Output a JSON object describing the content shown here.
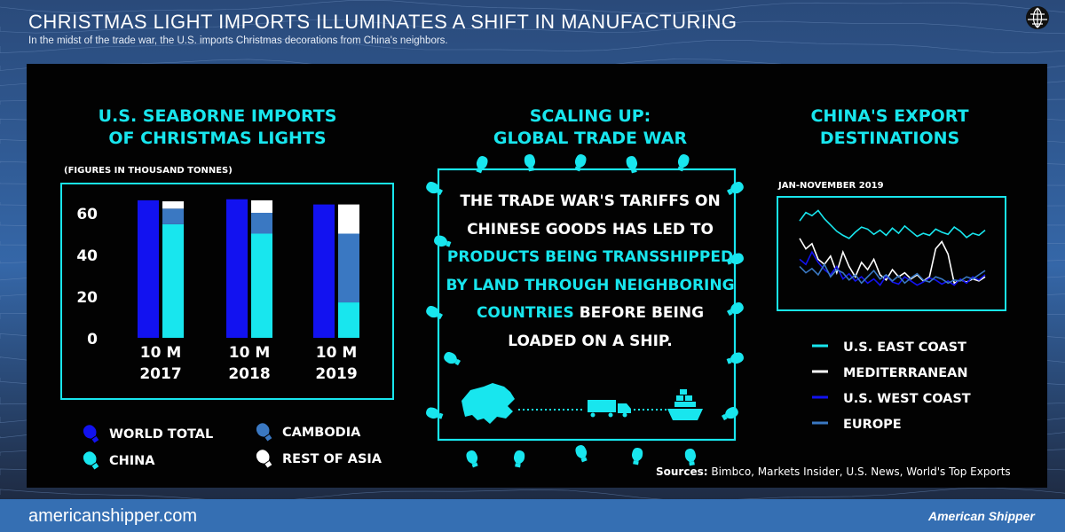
{
  "header": {
    "title": "CHRISTMAS LIGHT IMPORTS ILLUMINATES A SHIFT IN MANUFACTURING",
    "subtitle": "In the midst of the trade war, the U.S. imports Christmas decorations from China's neighbors."
  },
  "left": {
    "heading_line1": "U.S. SEABORNE IMPORTS",
    "heading_line2": "OF CHRISTMAS LIGHTS",
    "units": "(FIGURES IN THOUSAND TONNES)"
  },
  "middle": {
    "heading_line1": "SCALING UP:",
    "heading_line2": "GLOBAL TRADE WAR",
    "body_parts": [
      "THE TRADE WAR'S TARIFFS ON CHINESE GOODS HAS LED TO ",
      "PRODUCTS BEING TRANSSHIPPED BY LAND THROUGH NEIGHBORING COUNTRIES",
      " BEFORE BEING LOADED ON A SHIP."
    ]
  },
  "right": {
    "heading_line1": "CHINA'S EXPORT",
    "heading_line2": "DESTINATIONS",
    "period": "JAN-NOVEMBER 2019"
  },
  "colors": {
    "world_total": "#1212f0",
    "china": "#18e6ee",
    "cambodia": "#3a78c2",
    "rest_of_asia": "#ffffff",
    "frame": "#18e6ee"
  },
  "chart_data": [
    {
      "type": "bar",
      "title": "U.S. SEABORNE IMPORTS OF CHRISTMAS LIGHTS",
      "subtitle": "(FIGURES IN THOUSAND TONNES)",
      "categories": [
        [
          "10 M",
          "2017"
        ],
        [
          "10 M",
          "2018"
        ],
        [
          "10 M",
          "2019"
        ]
      ],
      "yticks": [
        0,
        20,
        40,
        60
      ],
      "ylim": [
        0,
        70
      ],
      "series": [
        {
          "name": "WORLD TOTAL",
          "stack": "total",
          "values": [
            66,
            66.5,
            64
          ]
        },
        {
          "name": "CHINA",
          "stack": "origin",
          "values": [
            54.5,
            50,
            17
          ]
        },
        {
          "name": "CAMBODIA",
          "stack": "origin",
          "values": [
            7.5,
            10,
            33
          ]
        },
        {
          "name": "REST OF ASIA",
          "stack": "origin",
          "values": [
            3.5,
            6,
            14
          ]
        }
      ],
      "legend_items": [
        {
          "name": "WORLD TOTAL",
          "color": "#1212f0"
        },
        {
          "name": "CAMBODIA",
          "color": "#3a78c2"
        },
        {
          "name": "CHINA",
          "color": "#18e6ee"
        },
        {
          "name": "REST OF ASIA",
          "color": "#ffffff"
        }
      ]
    },
    {
      "type": "line",
      "title": "CHINA'S EXPORT DESTINATIONS",
      "subtitle": "JAN-NOVEMBER 2019",
      "ylim": [
        0,
        10
      ],
      "series": [
        {
          "name": "U.S. EAST COAST",
          "color": "#18e6ee",
          "values": [
            8.2,
            9.0,
            8.7,
            9.2,
            8.4,
            7.8,
            7.2,
            6.8,
            6.5,
            7.1,
            7.6,
            7.4,
            6.9,
            7.3,
            6.8,
            7.5,
            7.0,
            7.7,
            7.2,
            6.7,
            7.0,
            6.8,
            7.4,
            7.1,
            6.9,
            7.6,
            7.2,
            6.6,
            7.0,
            6.8,
            7.3
          ]
        },
        {
          "name": "MEDITERRANEAN",
          "color": "#ffffff",
          "values": [
            6.5,
            5.5,
            6.0,
            4.5,
            4.0,
            4.8,
            3.2,
            5.2,
            3.8,
            2.8,
            4.2,
            3.5,
            4.5,
            3.0,
            2.5,
            3.5,
            2.8,
            3.2,
            2.6,
            3.0,
            2.4,
            2.8,
            5.5,
            6.2,
            5.0,
            2.2,
            2.5,
            2.3,
            2.6,
            2.4,
            2.8
          ]
        },
        {
          "name": "U.S. WEST COAST",
          "color": "#1212f0",
          "values": [
            4.5,
            4.0,
            5.2,
            4.2,
            3.5,
            3.0,
            3.8,
            2.6,
            3.1,
            2.4,
            2.8,
            2.2,
            2.6,
            2.0,
            2.9,
            2.3,
            2.1,
            2.8,
            2.4,
            2.0,
            2.3,
            2.7,
            2.5,
            2.1,
            2.4,
            2.0,
            2.6,
            2.2,
            2.8,
            2.5,
            3.0
          ]
        },
        {
          "name": "EUROPE",
          "color": "#3a78c2",
          "values": [
            3.8,
            3.2,
            3.6,
            3.0,
            4.0,
            2.8,
            3.5,
            3.2,
            2.5,
            3.0,
            2.2,
            2.8,
            3.4,
            2.6,
            3.0,
            2.4,
            2.9,
            2.2,
            2.7,
            3.1,
            2.5,
            2.3,
            2.8,
            2.6,
            2.2,
            2.5,
            2.4,
            2.8,
            2.6,
            3.0,
            3.4
          ]
        }
      ]
    }
  ],
  "sources": {
    "label": "Sources:",
    "text": " Bimbco, Markets Insider, U.S. News, World's Top Exports"
  },
  "footer": {
    "url": "americanshipper.com",
    "brand": "American Shipper"
  }
}
